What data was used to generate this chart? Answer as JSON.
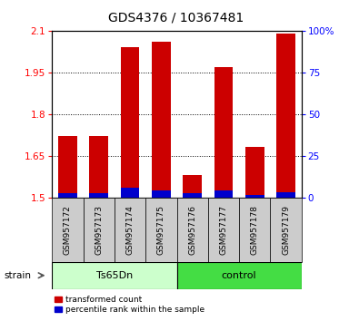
{
  "title": "GDS4376 / 10367481",
  "samples": [
    "GSM957172",
    "GSM957173",
    "GSM957174",
    "GSM957175",
    "GSM957176",
    "GSM957177",
    "GSM957178",
    "GSM957179"
  ],
  "red_values": [
    1.72,
    1.72,
    2.04,
    2.06,
    1.58,
    1.97,
    1.68,
    2.09
  ],
  "blue_values": [
    1.515,
    1.515,
    1.535,
    1.525,
    1.515,
    1.525,
    1.51,
    1.52
  ],
  "y_min": 1.5,
  "y_max": 2.1,
  "y_ticks": [
    1.5,
    1.65,
    1.8,
    1.95,
    2.1
  ],
  "y_tick_labels": [
    "1.5",
    "1.65",
    "1.8",
    "1.95",
    "2.1"
  ],
  "right_y_ticks": [
    0,
    25,
    50,
    75,
    100
  ],
  "right_y_tick_labels": [
    "0",
    "25",
    "50",
    "75",
    "100%"
  ],
  "bar_width": 0.6,
  "red_color": "#cc0000",
  "blue_color": "#0000cc",
  "plot_bg": "#ffffff",
  "legend_red": "transformed count",
  "legend_blue": "percentile rank within the sample",
  "strain_label": "strain",
  "ts65dn_color": "#ccffcc",
  "control_color": "#44dd44",
  "label_bg": "#cccccc",
  "title_fontsize": 10,
  "tick_fontsize": 7.5,
  "sample_fontsize": 6.5
}
